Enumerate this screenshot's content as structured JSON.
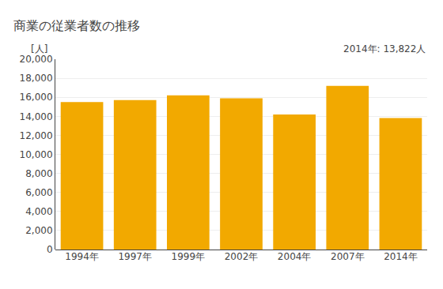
{
  "chart_data": {
    "type": "bar",
    "title": "商業の従業者数の推移",
    "ylabel": "[人]",
    "annotation": "2014年: 13,822人",
    "categories": [
      "1994年",
      "1997年",
      "1999年",
      "2002年",
      "2004年",
      "2007年",
      "2014年"
    ],
    "values": [
      15500,
      15700,
      16200,
      15900,
      14200,
      17200,
      13822
    ],
    "color": "#F2A900",
    "ylim": [
      0,
      20000
    ],
    "yticks": [
      0,
      {
        "value": 2000,
        "label": "2,000"
      },
      {
        "value": 4000,
        "label": "4,000"
      },
      {
        "value": 6000,
        "label": "6,000"
      },
      {
        "value": 8000,
        "label": "8,000"
      },
      {
        "value": 10000,
        "label": "10,000"
      },
      {
        "value": 12000,
        "label": "12,000"
      },
      {
        "value": 14000,
        "label": "14,000"
      },
      {
        "value": 16000,
        "label": "16,000"
      },
      {
        "value": 18000,
        "label": "18,000"
      },
      {
        "value": 20000,
        "label": "20,000"
      }
    ],
    "grid": true
  }
}
